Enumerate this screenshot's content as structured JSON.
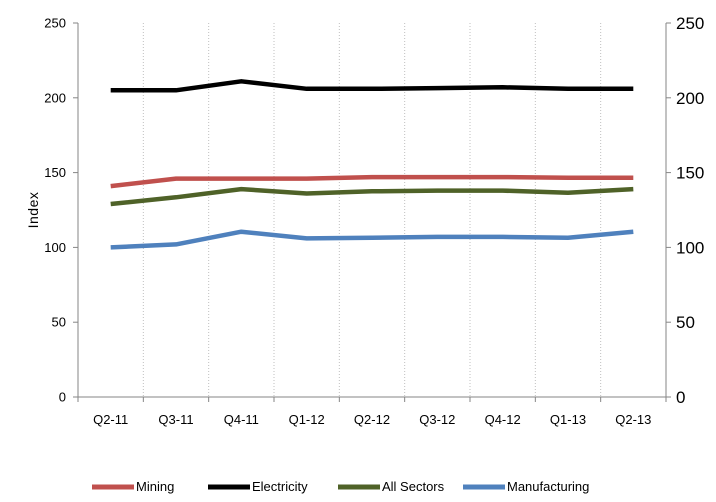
{
  "chart_data": {
    "type": "line",
    "categories": [
      "Q2-11",
      "Q3-11",
      "Q4-11",
      "Q1-12",
      "Q2-12",
      "Q3-12",
      "Q4-12",
      "Q1-13",
      "Q2-13"
    ],
    "series": [
      {
        "name": "Mining",
        "color": "#C0504D",
        "values": [
          141,
          146,
          146,
          146,
          147,
          147,
          147,
          146.5,
          146.5
        ]
      },
      {
        "name": "Electricity",
        "color": "#000000",
        "values": [
          205,
          205,
          211,
          206,
          206,
          206.5,
          207,
          206,
          206
        ]
      },
      {
        "name": "All Sectors",
        "color": "#4F6228",
        "values": [
          129,
          133.5,
          139,
          136,
          137.5,
          138,
          138,
          136.5,
          139
        ]
      },
      {
        "name": "Manufacturing",
        "color": "#4F81BD",
        "values": [
          100,
          102,
          110.5,
          106,
          106.5,
          107,
          107,
          106.5,
          110.5
        ]
      }
    ],
    "ylabel": "Index",
    "xlabel": "",
    "ylim": [
      0,
      250
    ],
    "yticks": [
      0,
      50,
      100,
      150,
      200,
      250
    ],
    "secondary_ylim": [
      0,
      250
    ],
    "secondary_yticks": [
      0,
      50,
      100,
      150,
      200,
      250
    ],
    "grid": "vertical dotted",
    "legend_position": "bottom"
  }
}
